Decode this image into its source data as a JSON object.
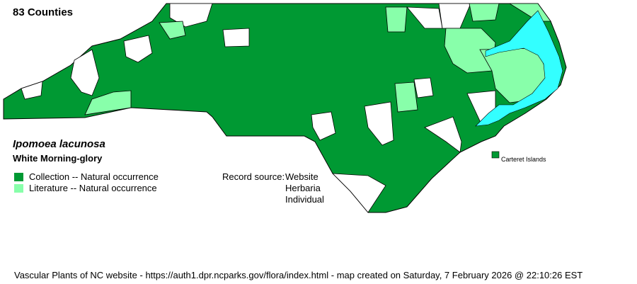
{
  "header": {
    "county_count": "83 Counties"
  },
  "species": {
    "scientific_name": "Ipomoea lacunosa",
    "common_name": "White Morning-glory"
  },
  "legend": [
    {
      "label": "Collection -- Natural occurrence",
      "color": "#009933"
    },
    {
      "label": "Literature -- Natural occurrence",
      "color": "#88ffaa"
    }
  ],
  "record_source": {
    "label": "Record source:",
    "values": [
      "Website",
      "Herbaria",
      "Individual"
    ]
  },
  "map": {
    "water_color": "#33ffff",
    "no_record_color": "#ffffff",
    "callout_label": "Carteret Islands"
  },
  "footer": "Vascular Plants of NC website - https://auth1.dpr.ncparks.gov/flora/index.html - map created on Saturday, 7 February 2026 @ 22:10:26 EST"
}
